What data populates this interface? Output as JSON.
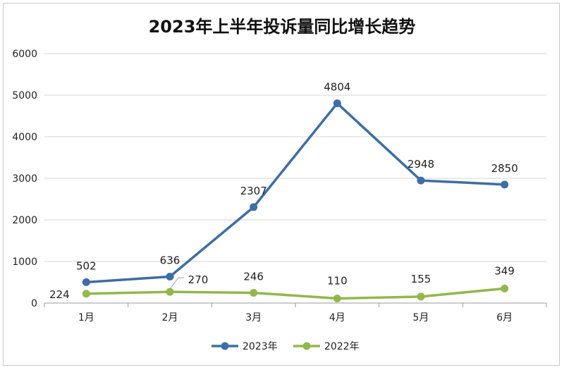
{
  "chart_data": {
    "type": "line",
    "title": "2023年上半年投诉量同比增长趋势",
    "categories": [
      "1月",
      "2月",
      "3月",
      "4月",
      "5月",
      "6月"
    ],
    "series": [
      {
        "name": "2023年",
        "values": [
          502,
          636,
          2307,
          4804,
          2948,
          2850
        ],
        "color": "#3c6ea8"
      },
      {
        "name": "2022年",
        "values": [
          224,
          270,
          246,
          110,
          155,
          349
        ],
        "color": "#92b84a"
      }
    ],
    "ylim": [
      0,
      6000
    ],
    "yticks": [
      "0",
      "1000",
      "2000",
      "3000",
      "4000",
      "5000",
      "6000"
    ],
    "grid": true,
    "legend_position": "bottom"
  }
}
